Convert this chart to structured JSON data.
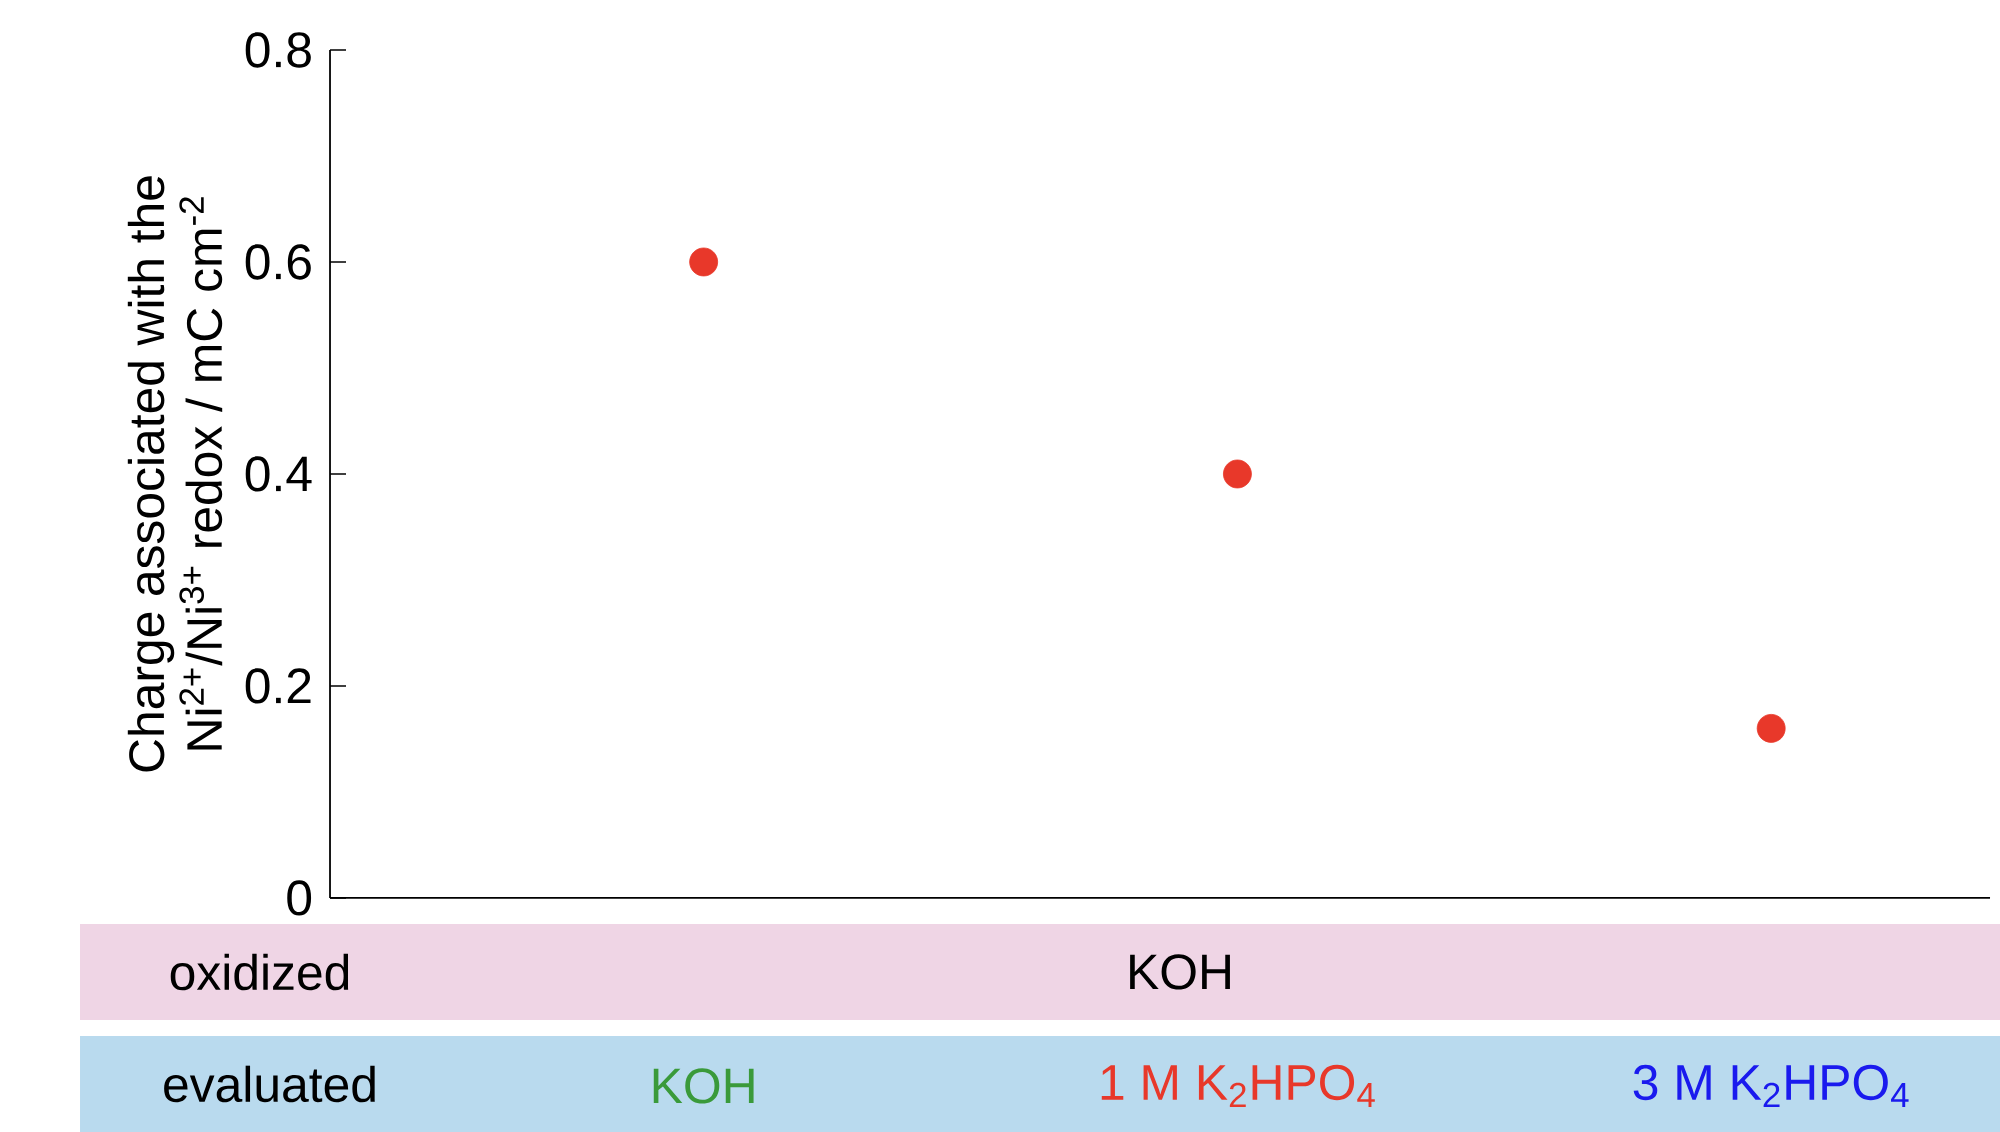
{
  "chart_data": {
    "type": "scatter",
    "ylabel": "Charge associated with the Ni$^{2+}$/Ni$^{3+}$ redox / mC cm$^{-2}$",
    "categories": [
      "KOH",
      "1 M K$_{2}$HPO$_{4}$",
      "3 M K$_{2}$HPO$_{4}$"
    ],
    "values": [
      0.6,
      0.4,
      0.16
    ],
    "color": "#e8382a",
    "ylim": [
      0,
      0.8
    ],
    "yticks": [
      0,
      0.2,
      0.4,
      0.6,
      0.8
    ],
    "annotations": [
      "oxidized",
      "KOH",
      "evaluated"
    ]
  }
}
